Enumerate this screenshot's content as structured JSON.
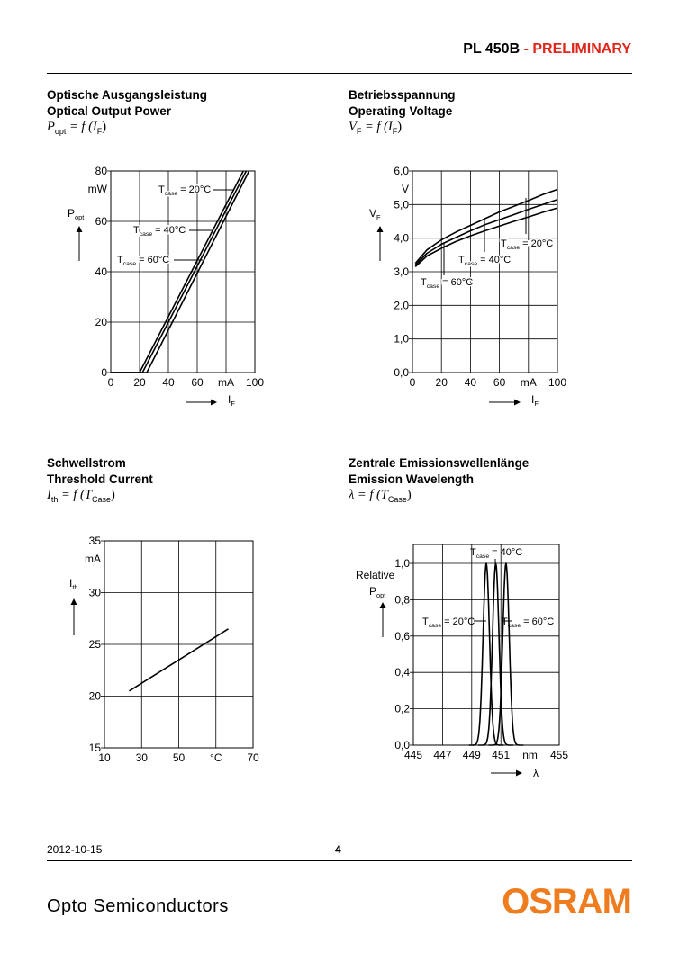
{
  "header": {
    "product": "PL 450B",
    "status": " - PRELIMINARY"
  },
  "captions": [
    {
      "line1": "Optische Ausgangsleistung",
      "line2": "Optical Output Power",
      "formula": {
        "var": "P",
        "sub": "opt",
        "rest": " = f (I",
        "sub2": "F",
        "close": ")"
      }
    },
    {
      "line1": "Betriebsspannung",
      "line2": "Operating Voltage",
      "formula": {
        "var": "V",
        "sub": "F",
        "rest": " = f (I",
        "sub2": "F",
        "close": ")"
      }
    },
    {
      "line1": "Schwellstrom",
      "line2": "Threshold Current",
      "formula": {
        "var": "I",
        "sub": "th",
        "rest": " = f (T",
        "sub2": "Case",
        "close": ")"
      }
    },
    {
      "line1": "Zentrale Emissionswellenlänge",
      "line2": "Emission Wavelength",
      "formula": {
        "var": "λ",
        "sub": "",
        "rest": " = f (T",
        "sub2": "Case",
        "close": ")"
      }
    }
  ],
  "chart_data": [
    {
      "type": "line",
      "x_ticks": [
        "0",
        "20",
        "40",
        "60",
        "mA",
        "100"
      ],
      "y_ticks": [
        "0",
        "20",
        "40",
        "60",
        "80"
      ],
      "y_unit": "mW",
      "xlabel": {
        "main": "I",
        "sub": "F"
      },
      "ylabel": {
        "main": "P",
        "sub": "opt"
      },
      "xlim": [
        0,
        100
      ],
      "ylim": [
        0,
        80
      ],
      "series": [
        {
          "name": "T_case = 20°C",
          "label_main": "T",
          "label_sub": "case",
          "label_rest": " = 20°C",
          "x": [
            0,
            20,
            92
          ],
          "y": [
            0,
            0,
            80
          ]
        },
        {
          "name": "T_case = 40°C",
          "label_main": "T",
          "label_sub": "case",
          "label_rest": " = 40°C",
          "x": [
            0,
            22,
            94
          ],
          "y": [
            0,
            0,
            80
          ]
        },
        {
          "name": "T_case = 60°C",
          "label_main": "T",
          "label_sub": "case",
          "label_rest": " = 60°C",
          "x": [
            0,
            25,
            96
          ],
          "y": [
            0,
            0,
            80
          ]
        }
      ]
    },
    {
      "type": "line",
      "x_ticks": [
        "0",
        "20",
        "40",
        "60",
        "mA",
        "100"
      ],
      "y_ticks": [
        "0,0",
        "1,0",
        "2,0",
        "3,0",
        "4,0",
        "5,0",
        "6,0"
      ],
      "y_unit": "V",
      "xlabel": {
        "main": "I",
        "sub": "F"
      },
      "ylabel": {
        "main": "V",
        "sub": "F"
      },
      "xlim": [
        0,
        100
      ],
      "ylim": [
        0,
        6
      ],
      "series": [
        {
          "name": "T_case = 20°C",
          "label_main": "T",
          "label_sub": "case",
          "label_rest": " = 20°C",
          "x": [
            2,
            10,
            20,
            30,
            40,
            50,
            60,
            70,
            80,
            90,
            100
          ],
          "y": [
            3.25,
            3.65,
            3.95,
            4.18,
            4.38,
            4.58,
            4.78,
            4.95,
            5.12,
            5.3,
            5.45
          ]
        },
        {
          "name": "T_case = 40°C",
          "label_main": "T",
          "label_sub": "case",
          "label_rest": " = 40°C",
          "x": [
            2,
            10,
            20,
            30,
            40,
            50,
            60,
            70,
            80,
            90,
            100
          ],
          "y": [
            3.2,
            3.55,
            3.82,
            4.02,
            4.22,
            4.4,
            4.55,
            4.7,
            4.86,
            5.0,
            5.15
          ]
        },
        {
          "name": "T_case = 60°C",
          "label_main": "T",
          "label_sub": "case",
          "label_rest": " = 60°C",
          "x": [
            2,
            10,
            20,
            30,
            40,
            50,
            60,
            70,
            80,
            90,
            100
          ],
          "y": [
            3.15,
            3.47,
            3.7,
            3.9,
            4.07,
            4.22,
            4.36,
            4.5,
            4.63,
            4.77,
            4.9
          ]
        }
      ]
    },
    {
      "type": "line",
      "x_ticks": [
        "10",
        "30",
        "50",
        "°C",
        "70"
      ],
      "y_ticks": [
        "15",
        "20",
        "25",
        "30",
        "35"
      ],
      "y_unit": "mA",
      "xlabel": null,
      "ylabel": {
        "main": "I",
        "sub": "th"
      },
      "xlim": [
        10,
        70
      ],
      "ylim": [
        15,
        35
      ],
      "series": [
        {
          "x": [
            20,
            60
          ],
          "y": [
            20.5,
            26.5
          ]
        }
      ]
    },
    {
      "type": "line",
      "x_ticks": [
        "445",
        "447",
        "449",
        "451",
        "nm",
        "455"
      ],
      "y_ticks": [
        "0,0",
        "0,2",
        "0,4",
        "0,6",
        "0,8",
        "1,0"
      ],
      "y_unit": "",
      "xlabel": {
        "main": "λ",
        "sub": ""
      },
      "ylabel": {
        "main": "P",
        "sub": "opt",
        "prefix": "Relative"
      },
      "xlim": [
        445,
        455
      ],
      "ylim": [
        0,
        1.1
      ],
      "series": [
        {
          "name": "T_case = 20°C",
          "label_main": "T",
          "label_sub": "case",
          "label_rest": " = 20°C",
          "center": 450.0,
          "sigma": 0.22
        },
        {
          "name": "T_case = 40°C",
          "label_main": "T",
          "label_sub": "case",
          "label_rest": " = 40°C",
          "center": 450.65,
          "sigma": 0.22
        },
        {
          "name": "T_case = 60°C",
          "label_main": "T",
          "label_sub": "case",
          "label_rest": " = 60°C",
          "center": 451.35,
          "sigma": 0.22
        }
      ]
    }
  ],
  "footer": {
    "date": "2012-10-15",
    "page": "4",
    "company": "Opto Semiconductors",
    "brand": "OSRAM"
  }
}
